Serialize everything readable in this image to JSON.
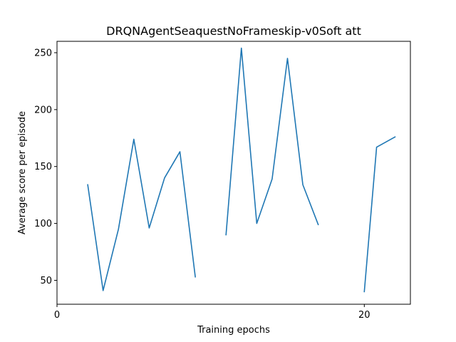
{
  "chart_data": {
    "type": "line",
    "title": "DRQNAgentSeaquestNoFrameskip-v0Soft att",
    "xlabel": "Training epochs",
    "ylabel": "Average score per episode",
    "xlim": [
      0,
      23
    ],
    "ylim": [
      29,
      260
    ],
    "xticks": [
      0,
      20
    ],
    "yticks": [
      50,
      100,
      150,
      200,
      250
    ],
    "series": [
      {
        "name": "score",
        "color": "#1f77b4",
        "segments": [
          [
            [
              2,
              134
            ],
            [
              3,
              41
            ],
            [
              4,
              95
            ],
            [
              5,
              174
            ],
            [
              6,
              96
            ],
            [
              7,
              140
            ],
            [
              8,
              163
            ],
            [
              9,
              53
            ]
          ],
          [
            [
              11,
              90
            ],
            [
              12,
              254
            ],
            [
              13,
              100
            ],
            [
              14,
              139
            ],
            [
              15,
              245
            ],
            [
              16,
              134
            ],
            [
              17,
              99
            ]
          ],
          [
            [
              20,
              40
            ],
            [
              20.8,
              167
            ],
            [
              22,
              176
            ]
          ]
        ]
      }
    ]
  }
}
